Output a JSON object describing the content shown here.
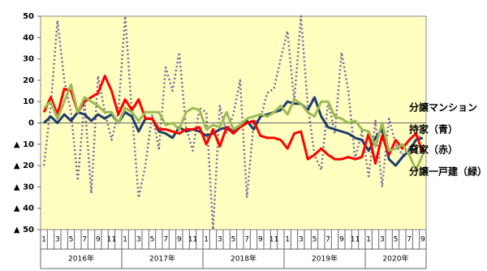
{
  "chart_data": {
    "type": "line",
    "categories": [
      "1",
      null,
      "3",
      null,
      "5",
      null,
      "7",
      null,
      "9",
      null,
      "11",
      null,
      "1",
      null,
      "3",
      null,
      "5",
      null,
      "7",
      null,
      "9",
      null,
      "11",
      null,
      "1",
      null,
      "3",
      null,
      "5",
      null,
      "7",
      null,
      "9",
      null,
      "11",
      null,
      "1",
      null,
      "3",
      null,
      "5",
      null,
      "7",
      null,
      "9",
      null,
      "11",
      null,
      "1",
      null,
      "3",
      null,
      "5",
      null,
      "7",
      null,
      "9"
    ],
    "years": [
      "2016年",
      "2017年",
      "2018年",
      "2019年",
      "2020年"
    ],
    "series": [
      {
        "name": "分譲マンション",
        "color": "#8064a2",
        "dash": true,
        "values": [
          -20,
          8,
          48,
          20,
          5,
          -27,
          10,
          -33,
          22,
          5,
          -8,
          5,
          50,
          5,
          -35,
          -20,
          4,
          -12,
          26,
          15,
          33,
          -2,
          -13,
          7,
          5,
          -50,
          8,
          -5,
          4,
          20,
          -35,
          0,
          2,
          14,
          16,
          30,
          43,
          10,
          50,
          8,
          -15,
          -22,
          10,
          -5,
          33,
          15,
          -17,
          -4,
          -25,
          1,
          -30,
          2,
          -10,
          -15,
          -12,
          -8,
          -5
        ]
      },
      {
        "name": "持家（青）",
        "color": "#1f3c6e",
        "dash": false,
        "values": [
          0,
          3,
          0,
          4,
          1,
          5,
          4,
          1,
          4,
          2,
          4,
          0,
          5,
          3,
          -4,
          2,
          2,
          -4,
          -5,
          -7,
          -2,
          -4,
          -3,
          -4,
          -6,
          -5,
          -3,
          -2,
          -4,
          -1,
          1,
          -3,
          3,
          4,
          5,
          6,
          10,
          9,
          9,
          6,
          12,
          3,
          -2,
          -3,
          -4,
          -5,
          -7,
          -8,
          -13,
          -7,
          -3,
          -17,
          -20,
          -16,
          -13,
          -8,
          -7
        ]
      },
      {
        "name": "貸家（赤）",
        "color": "#ff0000",
        "dash": false,
        "values": [
          5,
          12,
          4,
          16,
          15,
          5,
          10,
          12,
          14,
          22,
          15,
          4,
          11,
          6,
          11,
          2,
          2,
          -3,
          -3,
          -4,
          -5,
          -3,
          -3,
          -2,
          -10,
          -3,
          -11,
          -2,
          -5,
          -2,
          0,
          1,
          -6,
          -7,
          -7,
          -8,
          -12,
          -5,
          -4,
          -17,
          -15,
          -12,
          -15,
          -17,
          -17,
          -16,
          -17,
          -16,
          -5,
          -19,
          -6,
          -15,
          -8,
          -12,
          -8,
          -5,
          -14
        ]
      },
      {
        "name": "分譲一戸建（緑）",
        "color": "#9bbb59",
        "dash": false,
        "values": [
          7,
          10,
          2,
          10,
          18,
          5,
          12,
          10,
          8,
          5,
          5,
          0,
          7,
          5,
          1,
          5,
          5,
          5,
          -1,
          0,
          -3,
          5,
          7,
          6,
          -3,
          -1,
          -2,
          5,
          -3,
          -1,
          2,
          3,
          4,
          3,
          5,
          8,
          4,
          11,
          9,
          5,
          3,
          10,
          10,
          3,
          2,
          0,
          1,
          -3,
          -4,
          -11,
          0,
          -13,
          -12,
          -10,
          -15,
          -22,
          -15
        ]
      }
    ],
    "ylim": [
      -50,
      50
    ],
    "yticks": [
      {
        "value": -50,
        "label": "▲ 50"
      },
      {
        "value": -40,
        "label": "▲ 40"
      },
      {
        "value": -30,
        "label": "▲ 30"
      },
      {
        "value": -20,
        "label": "▲ 20"
      },
      {
        "value": -10,
        "label": "▲ 10"
      },
      0,
      10,
      20,
      30,
      40,
      50
    ],
    "background": "#ffffc0"
  }
}
